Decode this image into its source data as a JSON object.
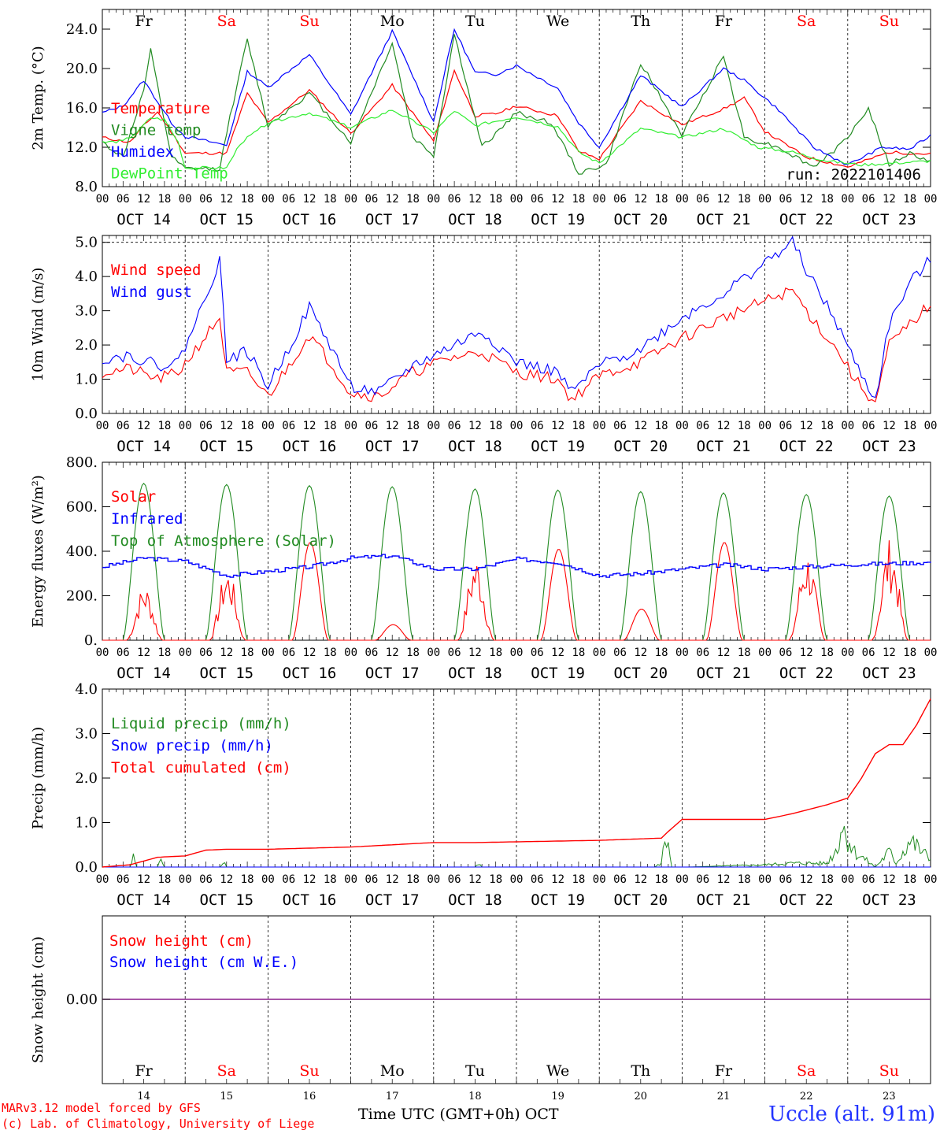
{
  "footer": {
    "model": "MARv3.12 model forced by GFS",
    "copyright": "(c) Lab. of Climatology, University of Liege",
    "xlabel": "Time UTC (GMT+0h)",
    "month": "OCT",
    "station": "Uccle (alt. 91m)"
  },
  "colors": {
    "red": "#ff0000",
    "green": "#228b22",
    "blue": "#0000ff",
    "lightgreen": "#33ee33",
    "purple": "#8b1c8b"
  },
  "days": [
    {
      "abbr": "Fr",
      "date": "OCT 14",
      "num": "14",
      "weekend": false
    },
    {
      "abbr": "Sa",
      "date": "OCT 15",
      "num": "15",
      "weekend": true
    },
    {
      "abbr": "Su",
      "date": "OCT 16",
      "num": "16",
      "weekend": true
    },
    {
      "abbr": "Mo",
      "date": "OCT 17",
      "num": "17",
      "weekend": false
    },
    {
      "abbr": "Tu",
      "date": "OCT 18",
      "num": "18",
      "weekend": false
    },
    {
      "abbr": "We",
      "date": "OCT 19",
      "num": "19",
      "weekend": false
    },
    {
      "abbr": "Th",
      "date": "OCT 20",
      "num": "20",
      "weekend": false
    },
    {
      "abbr": "Fr",
      "date": "OCT 21",
      "num": "21",
      "weekend": false
    },
    {
      "abbr": "Sa",
      "date": "OCT 22",
      "num": "22",
      "weekend": true
    },
    {
      "abbr": "Su",
      "date": "OCT 23",
      "num": "23",
      "weekend": true
    }
  ],
  "hour_labels": [
    "00",
    "06",
    "12",
    "18"
  ],
  "chart_data": [
    {
      "type": "line",
      "ylabel": "2m Temp. (°C)",
      "ylim": [
        8,
        26
      ],
      "yticks": [
        8,
        12,
        16,
        20,
        24
      ],
      "ytick_labels": [
        "8.0",
        "12.0",
        "16.0",
        "20.0",
        "24.0"
      ],
      "run": "run: 2022101406",
      "series": [
        {
          "name": "Temperature",
          "color": "red",
          "x": [
            0,
            8,
            12,
            16,
            22,
            24,
            36,
            42,
            48,
            60,
            72,
            84,
            96,
            102,
            108,
            114,
            120,
            132,
            138,
            144,
            156,
            168,
            180,
            186,
            192,
            204,
            216,
            228,
            240
          ],
          "y": [
            13,
            12.5,
            14.2,
            15.6,
            12.5,
            11.4,
            11.4,
            17.5,
            14.5,
            17.8,
            13.4,
            18.3,
            12.6,
            19.8,
            15.2,
            15.4,
            16.2,
            15.2,
            11.6,
            10.8,
            16.7,
            14.3,
            15.9,
            17.0,
            13.6,
            11.0,
            10.0,
            11.5,
            11.3
          ]
        },
        {
          "name": "Vigne temp",
          "color": "green",
          "x": [
            0,
            6,
            12,
            14,
            20,
            24,
            34,
            36,
            42,
            48,
            60,
            72,
            84,
            90,
            96,
            102,
            110,
            120,
            130,
            138,
            146,
            156,
            168,
            180,
            186,
            196,
            206,
            214,
            222,
            228,
            234,
            240
          ],
          "y": [
            12.5,
            11,
            17.8,
            21.8,
            11,
            9.8,
            9.8,
            13.5,
            22.9,
            14.2,
            17.5,
            12.5,
            22.6,
            13,
            11.2,
            23.5,
            12,
            15.5,
            14.5,
            9.4,
            10.2,
            20.6,
            13.2,
            21.3,
            13,
            12,
            10,
            12.2,
            15.9,
            10.2,
            11.4,
            10.5
          ]
        },
        {
          "name": "Humidex",
          "color": "blue",
          "x": [
            0,
            6,
            12,
            14,
            20,
            24,
            36,
            42,
            48,
            60,
            72,
            84,
            96,
            102,
            108,
            114,
            120,
            132,
            138,
            144,
            156,
            168,
            180,
            186,
            196,
            206,
            216,
            226,
            234,
            240
          ],
          "y": [
            15.5,
            16.2,
            18.8,
            17.7,
            14.5,
            13.1,
            12.2,
            19.7,
            18.1,
            21.4,
            15.3,
            23.8,
            14.6,
            24.0,
            19.6,
            19.4,
            20.3,
            18.0,
            14.5,
            12.0,
            19.3,
            16.1,
            20.0,
            18.8,
            15.8,
            12.0,
            10.2,
            12.0,
            11.8,
            13.2
          ]
        },
        {
          "name": "DewPoint Temp",
          "color": "lightgreen",
          "x": [
            0,
            6,
            10,
            14,
            18,
            22,
            24,
            36,
            40,
            48,
            60,
            72,
            84,
            96,
            102,
            108,
            120,
            132,
            138,
            144,
            156,
            168,
            180,
            190,
            200,
            210,
            220,
            230,
            240
          ],
          "y": [
            12.5,
            12.6,
            13.5,
            15.0,
            14.8,
            12.5,
            9.9,
            9.9,
            12.4,
            14.5,
            15.5,
            14.0,
            15.8,
            13.5,
            15.7,
            14.2,
            15.1,
            14.1,
            11.5,
            10.4,
            13.9,
            13.0,
            13.9,
            12.0,
            11.5,
            10.6,
            10.2,
            10.4,
            10.6
          ]
        }
      ]
    },
    {
      "type": "line",
      "ylabel": "10m Wind (m/s)",
      "ylim": [
        0,
        5.2
      ],
      "yticks": [
        0,
        1,
        2,
        3,
        4,
        5
      ],
      "ytick_labels": [
        "0.0",
        "1.0",
        "2.0",
        "3.0",
        "4.0",
        "5.0"
      ],
      "series": [
        {
          "name": "Wind speed",
          "color": "red",
          "x": [
            0,
            8,
            16,
            22,
            28,
            34,
            36,
            42,
            48,
            54,
            60,
            66,
            72,
            80,
            90,
            100,
            110,
            120,
            132,
            136,
            144,
            156,
            168,
            180,
            200,
            204,
            214,
            218,
            224,
            228,
            234,
            240
          ],
          "y": [
            1.2,
            1.3,
            1.0,
            1.2,
            2.0,
            2.8,
            1.2,
            1.2,
            0.5,
            1.4,
            2.3,
            1.5,
            0.6,
            0.5,
            1.2,
            1.6,
            1.8,
            1.2,
            1.0,
            0.4,
            1.1,
            1.5,
            2.2,
            2.8,
            3.6,
            3.0,
            1.7,
            1.0,
            0.3,
            2.0,
            2.6,
            3.2
          ]
        },
        {
          "name": "Wind gust",
          "color": "blue",
          "x": [
            0,
            8,
            16,
            22,
            28,
            34,
            36,
            42,
            48,
            54,
            60,
            66,
            72,
            80,
            90,
            100,
            110,
            120,
            132,
            136,
            144,
            156,
            168,
            180,
            200,
            204,
            214,
            218,
            224,
            228,
            234,
            240
          ],
          "y": [
            1.6,
            1.7,
            1.4,
            1.5,
            2.9,
            4.5,
            1.6,
            1.8,
            0.8,
            1.9,
            3.1,
            2.0,
            0.8,
            0.6,
            1.4,
            1.9,
            2.4,
            1.5,
            1.2,
            0.6,
            1.4,
            1.9,
            2.8,
            3.5,
            5.0,
            4.2,
            2.4,
            1.5,
            0.4,
            2.6,
            3.8,
            4.5
          ]
        }
      ]
    },
    {
      "type": "line",
      "ylabel": "Energy fluxes (W/m²)",
      "ylim": [
        0,
        800
      ],
      "yticks": [
        0,
        200,
        400,
        600,
        800
      ],
      "ytick_labels": [
        "0.",
        "200.",
        "400.",
        "600.",
        "800."
      ],
      "solar_peaks": [
        230,
        300,
        440,
        70,
        350,
        410,
        140,
        440,
        370,
        420
      ],
      "toa_peaks": [
        705,
        700,
        695,
        690,
        680,
        675,
        668,
        662,
        655,
        648
      ],
      "infrared": {
        "x": [
          0,
          12,
          24,
          36,
          48,
          60,
          72,
          84,
          96,
          108,
          120,
          132,
          144,
          156,
          168,
          180,
          192,
          204,
          216,
          228,
          240
        ],
        "y": [
          330,
          370,
          355,
          290,
          310,
          330,
          370,
          380,
          320,
          320,
          365,
          350,
          290,
          300,
          320,
          340,
          320,
          330,
          340,
          345,
          350
        ]
      },
      "series": [
        {
          "name": "Solar",
          "color": "red"
        },
        {
          "name": "Infrared",
          "color": "blue"
        },
        {
          "name": "Top of Atmosphere (Solar)",
          "color": "green"
        }
      ]
    },
    {
      "type": "line",
      "ylabel": "Precip (mm/h)",
      "ylim": [
        0,
        4
      ],
      "yticks": [
        0,
        1,
        2,
        3,
        4
      ],
      "ytick_labels": [
        "0.0",
        "1.0",
        "2.0",
        "3.0",
        "4.0"
      ],
      "series": [
        {
          "name": "Liquid precip (mm/h)",
          "color": "green",
          "x": [
            0,
            8,
            9,
            10,
            16,
            17,
            18,
            34,
            35,
            36,
            60,
            108,
            109,
            110,
            160,
            162,
            163,
            164,
            165,
            170,
            190,
            200,
            210,
            213,
            214,
            216,
            218,
            224,
            228,
            230,
            234,
            240
          ],
          "y": [
            0,
            0,
            0.25,
            0,
            0,
            0.2,
            0,
            0,
            0.15,
            0,
            0,
            0,
            0.1,
            0,
            0,
            0.1,
            0.7,
            0.8,
            0,
            0,
            0.05,
            0.1,
            0.1,
            0.5,
            1.1,
            0.8,
            0.4,
            0,
            0.4,
            0.1,
            0.7,
            0.2
          ]
        },
        {
          "name": "Snow precip (mm/h)",
          "color": "blue"
        },
        {
          "name": "Total cumulated (cm)",
          "color": "red",
          "x": [
            0,
            8,
            16,
            24,
            30,
            36,
            48,
            72,
            84,
            96,
            108,
            144,
            162,
            164,
            168,
            192,
            200,
            210,
            216,
            220,
            224,
            228,
            232,
            236,
            240
          ],
          "y": [
            0,
            0.05,
            0.22,
            0.25,
            0.38,
            0.4,
            0.4,
            0.45,
            0.5,
            0.55,
            0.55,
            0.6,
            0.65,
            0.8,
            1.07,
            1.07,
            1.2,
            1.4,
            1.55,
            2.0,
            2.55,
            2.75,
            2.75,
            3.2,
            3.78
          ]
        }
      ]
    },
    {
      "type": "line",
      "ylabel": "Snow height (cm)",
      "yticks": [
        0
      ],
      "ytick_labels": [
        "0.00"
      ],
      "series": [
        {
          "name": "Snow height (cm)",
          "color": "red"
        },
        {
          "name": "Snow height (cm W.E.)",
          "color": "blue"
        }
      ]
    }
  ]
}
